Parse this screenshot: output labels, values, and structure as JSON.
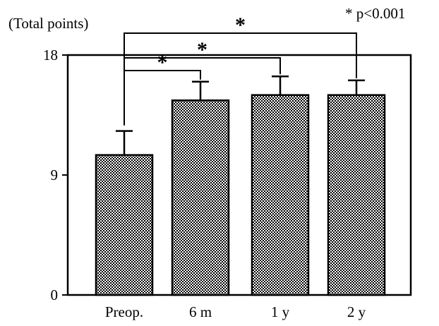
{
  "chart_data": {
    "type": "bar",
    "ylabel": "(Total points)",
    "legend_note": "* p<0.001",
    "categories": [
      "Preop.",
      "6 m",
      "1 y",
      "2 y"
    ],
    "values": [
      10.5,
      14.6,
      15.0,
      15.0
    ],
    "errors": [
      1.8,
      1.4,
      1.4,
      1.1
    ],
    "ylim": [
      0,
      18
    ],
    "yticks": [
      0,
      9,
      18
    ],
    "significance": [
      {
        "from": "Preop.",
        "to": "6 m",
        "label": "*"
      },
      {
        "from": "Preop.",
        "to": "1 y",
        "label": "*"
      },
      {
        "from": "Preop.",
        "to": "2 y",
        "label": "*"
      }
    ],
    "bar_pattern": "dotted-checker",
    "bar_colors": {
      "fill_dark": "#000000",
      "fill_light": "#ffffff",
      "stroke": "#000000"
    },
    "grid": false
  }
}
